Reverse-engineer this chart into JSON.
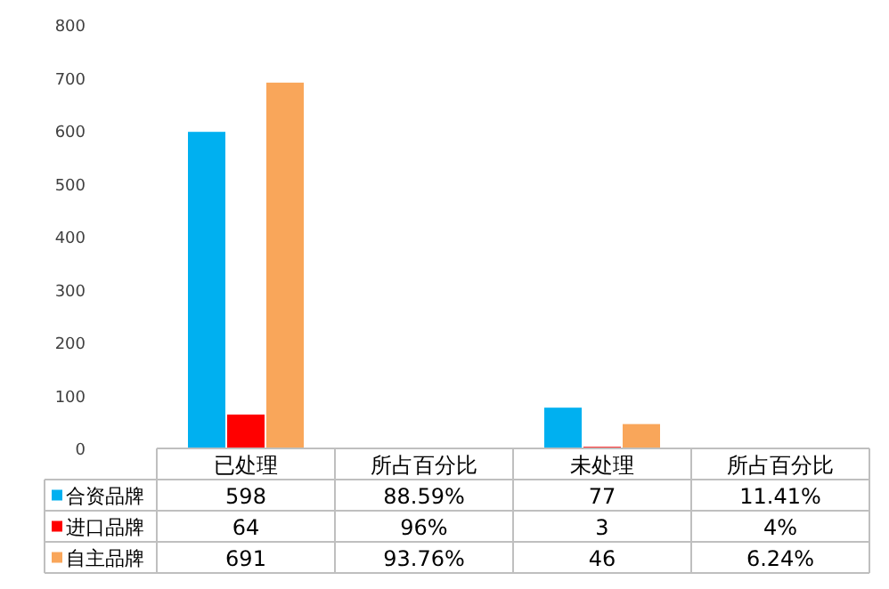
{
  "chart_data": {
    "type": "bar",
    "categories": [
      "已处理",
      "所占百分比",
      "未处理",
      "所占百分比"
    ],
    "series": [
      {
        "name": "合资品牌",
        "color": "#00b0f0",
        "values": [
          598,
          0.8859,
          77,
          0.1141
        ],
        "value_labels": [
          "598",
          "88.59%",
          "77",
          "11.41%"
        ]
      },
      {
        "name": "进口品牌",
        "color": "#ff0000",
        "values": [
          64,
          0.96,
          3,
          0.04
        ],
        "value_labels": [
          "64",
          "96%",
          "3",
          "4%"
        ]
      },
      {
        "name": "自主品牌",
        "color": "#f9a65a",
        "values": [
          691,
          0.9376,
          46,
          0.0624
        ],
        "value_labels": [
          "691",
          "93.76%",
          "46",
          "6.24%"
        ]
      }
    ],
    "ylim": [
      0,
      800
    ],
    "yticks": [
      0,
      100,
      200,
      300,
      400,
      500,
      600,
      700,
      800
    ],
    "grid": false,
    "legend": "bottom left"
  }
}
